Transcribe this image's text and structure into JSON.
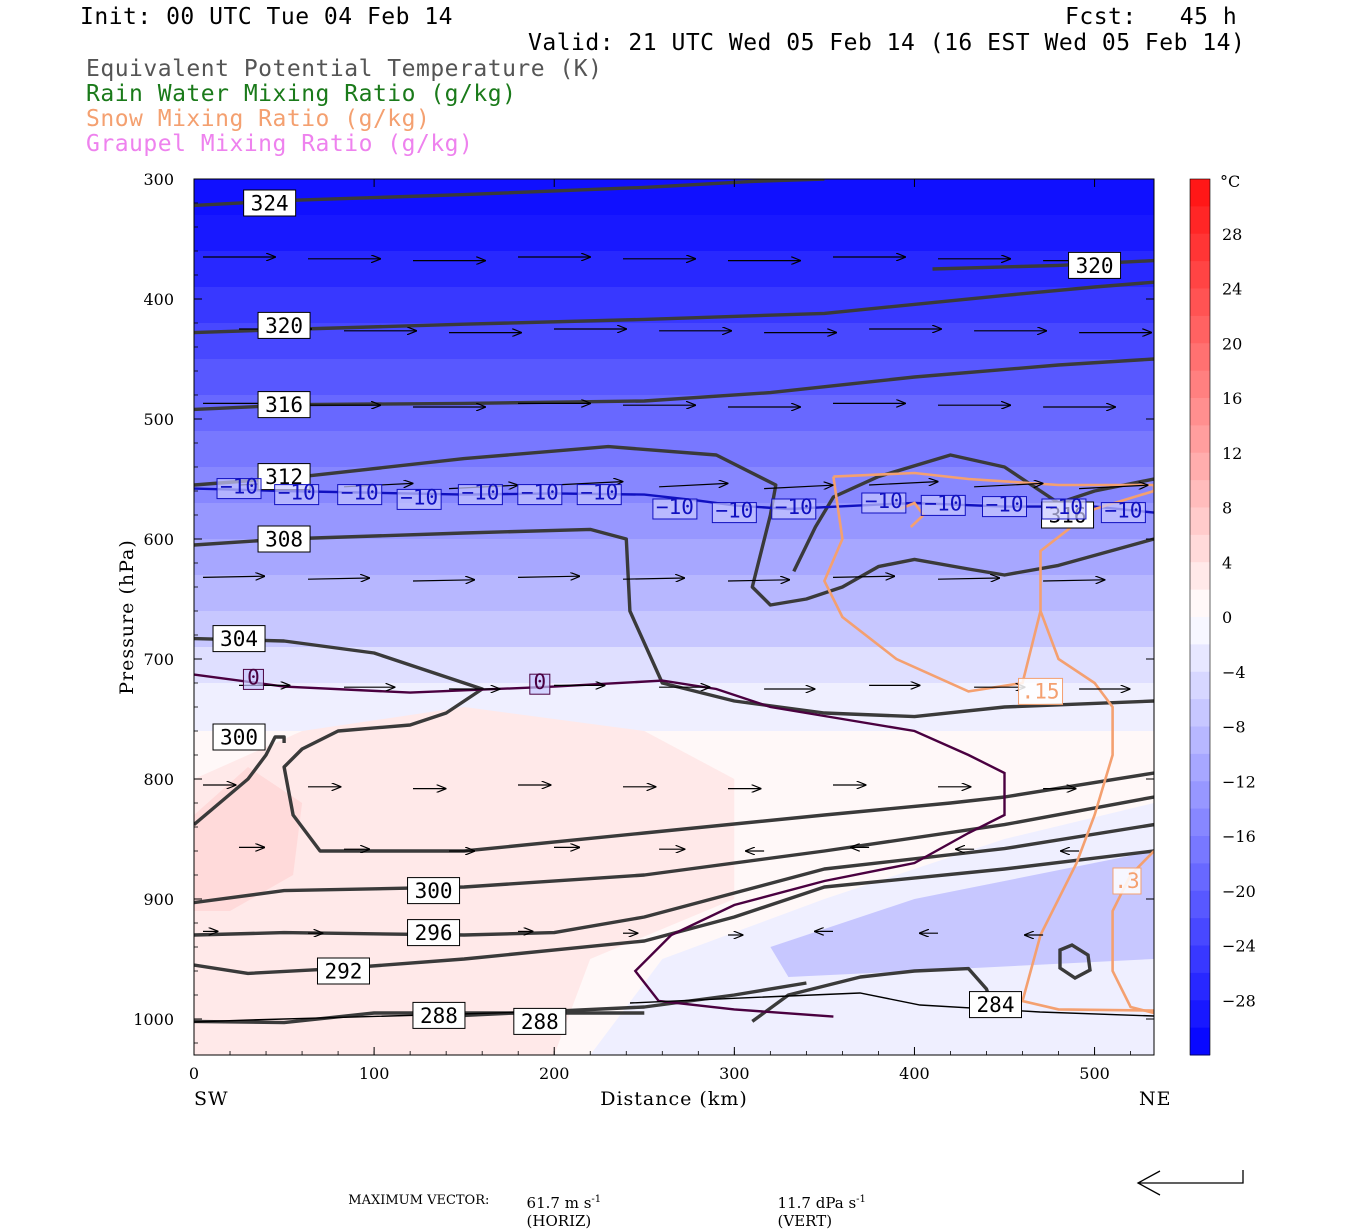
{
  "header": {
    "init": "Init: 00 UTC Tue 04 Feb 14",
    "fcst": "Fcst:   45 h",
    "valid": "Valid: 21 UTC Wed 05 Feb 14 (16 EST Wed 05 Feb 14)",
    "legend": [
      {
        "text": "Equivalent Potential Temperature (K)",
        "color": "#555555"
      },
      {
        "text": "Rain Water Mixing Ratio (g/kg)",
        "color": "#1a7a1a"
      },
      {
        "text": "Snow Mixing Ratio (g/kg)",
        "color": "#f4a070"
      },
      {
        "text": "Graupel Mixing Ratio (g/kg)",
        "color": "#ee82ee"
      }
    ]
  },
  "footer": {
    "max_vector_label": "MAXIMUM VECTOR:",
    "horiz_value": "61.7 m s",
    "horiz_unit": "(HORIZ)",
    "vert_value": "11.7 dPa s",
    "vert_unit": "(VERT)",
    "exp": "-1"
  },
  "chart_data": {
    "type": "cross-section",
    "xlabel": "Distance (km)",
    "ylabel": "Pressure (hPa)",
    "x_ticks": [
      0,
      100,
      200,
      300,
      400,
      500
    ],
    "y_ticks": [
      300,
      400,
      500,
      600,
      700,
      800,
      900,
      1000
    ],
    "xlim": [
      0,
      533
    ],
    "ylim": [
      1030,
      300
    ],
    "x_end_labels": {
      "left": "SW",
      "right": "NE"
    },
    "colorbar": {
      "unit": "°C",
      "tick_labels": [
        "28",
        "24",
        "20",
        "16",
        "12",
        "8",
        "4",
        "0",
        "−4",
        "−8",
        "−12",
        "−16",
        "−20",
        "−24",
        "−28"
      ],
      "tick_values": [
        28,
        24,
        20,
        16,
        12,
        8,
        4,
        0,
        -4,
        -8,
        -12,
        -16,
        -20,
        -24,
        -28
      ],
      "range": [
        -32,
        32
      ]
    },
    "theta_e_contours": [
      {
        "value": "324",
        "points": [
          [
            0,
            322
          ],
          [
            50,
            318
          ],
          [
            150,
            313
          ],
          [
            250,
            307
          ],
          [
            310,
            302
          ],
          [
            350,
            300
          ]
        ],
        "label_at": [
          42,
          320
        ]
      },
      {
        "value": "320",
        "points": [
          [
            0,
            428
          ],
          [
            60,
            425
          ],
          [
            150,
            421
          ],
          [
            250,
            417
          ],
          [
            350,
            412
          ],
          [
            450,
            397
          ],
          [
            500,
            390
          ],
          [
            533,
            386
          ]
        ],
        "label_at": [
          50,
          422
        ]
      },
      {
        "value": "320",
        "points": [
          [
            410,
            375
          ],
          [
            480,
            372
          ],
          [
            533,
            368
          ]
        ],
        "label_at": [
          500,
          372
        ]
      },
      {
        "value": "316",
        "points": [
          [
            0,
            492
          ],
          [
            60,
            488
          ],
          [
            150,
            487
          ],
          [
            250,
            485
          ],
          [
            320,
            478
          ],
          [
            400,
            465
          ],
          [
            480,
            455
          ],
          [
            533,
            450
          ]
        ],
        "label_at": [
          50,
          488
        ]
      },
      {
        "value": "312",
        "points": [
          [
            0,
            555
          ],
          [
            60,
            548
          ],
          [
            150,
            533
          ],
          [
            230,
            523
          ],
          [
            290,
            530
          ],
          [
            323,
            555
          ],
          [
            320,
            580
          ],
          [
            310,
            640
          ],
          [
            320,
            655
          ],
          [
            340,
            650
          ],
          [
            360,
            640
          ],
          [
            380,
            623
          ],
          [
            400,
            617
          ],
          [
            430,
            625
          ],
          [
            450,
            630
          ],
          [
            480,
            622
          ],
          [
            533,
            600
          ]
        ],
        "label_at": [
          50,
          548
        ]
      },
      {
        "value": "316",
        "points": [
          [
            333,
            627
          ],
          [
            345,
            590
          ],
          [
            355,
            565
          ],
          [
            380,
            548
          ],
          [
            420,
            530
          ],
          [
            450,
            540
          ],
          [
            470,
            560
          ],
          [
            480,
            570
          ],
          [
            500,
            560
          ],
          [
            533,
            550
          ]
        ],
        "label_at": [
          485,
          580
        ]
      },
      {
        "value": "308",
        "points": [
          [
            0,
            605
          ],
          [
            50,
            600
          ],
          [
            150,
            595
          ],
          [
            220,
            592
          ],
          [
            240,
            600
          ],
          [
            242,
            660
          ],
          [
            260,
            720
          ],
          [
            300,
            735
          ],
          [
            350,
            745
          ],
          [
            400,
            748
          ],
          [
            450,
            740
          ],
          [
            533,
            735
          ]
        ],
        "label_at": [
          50,
          600
        ]
      },
      {
        "value": "304",
        "points": [
          [
            0,
            683
          ],
          [
            50,
            685
          ],
          [
            100,
            695
          ],
          [
            160,
            725
          ],
          [
            140,
            745
          ],
          [
            120,
            755
          ],
          [
            80,
            760
          ],
          [
            60,
            775
          ],
          [
            50,
            790
          ],
          [
            55,
            830
          ],
          [
            70,
            860
          ],
          [
            150,
            860
          ],
          [
            250,
            845
          ],
          [
            350,
            830
          ],
          [
            420,
            820
          ],
          [
            450,
            815
          ],
          [
            533,
            795
          ]
        ],
        "label_at": [
          25,
          683
        ]
      },
      {
        "value": "300",
        "points": [
          [
            0,
            838
          ],
          [
            30,
            800
          ],
          [
            40,
            780
          ],
          [
            45,
            765
          ],
          [
            50,
            765
          ],
          [
            50,
            770
          ]
        ],
        "label_at": [
          25,
          765
        ]
      },
      {
        "value": "300",
        "points": [
          [
            0,
            903
          ],
          [
            50,
            893
          ],
          [
            150,
            890
          ],
          [
            250,
            880
          ],
          [
            350,
            860
          ],
          [
            450,
            838
          ],
          [
            533,
            815
          ]
        ],
        "label_at": [
          133,
          893
        ]
      },
      {
        "value": "296",
        "points": [
          [
            0,
            930
          ],
          [
            50,
            928
          ],
          [
            150,
            930
          ],
          [
            200,
            928
          ],
          [
            250,
            915
          ],
          [
            300,
            895
          ],
          [
            350,
            875
          ],
          [
            450,
            858
          ],
          [
            533,
            838
          ]
        ],
        "label_at": [
          133,
          928
        ]
      },
      {
        "value": "292",
        "points": [
          [
            0,
            955
          ],
          [
            30,
            962
          ],
          [
            80,
            958
          ],
          [
            150,
            950
          ],
          [
            250,
            935
          ],
          [
            300,
            915
          ],
          [
            350,
            890
          ],
          [
            450,
            875
          ],
          [
            533,
            860
          ]
        ],
        "label_at": [
          83,
          960
        ]
      },
      {
        "value": "288",
        "points": [
          [
            0,
            1002
          ],
          [
            50,
            1003
          ],
          [
            100,
            995
          ],
          [
            150,
            995
          ],
          [
            200,
            995
          ],
          [
            250,
            995
          ]
        ],
        "label_at": [
          136,
          997
        ]
      },
      {
        "value": "288",
        "points": [
          [
            150,
            997
          ],
          [
            250,
            990
          ],
          [
            300,
            980
          ],
          [
            340,
            970
          ]
        ],
        "label_at": [
          192,
          1002
        ]
      },
      {
        "value": "284",
        "points": [
          [
            310,
            1002
          ],
          [
            330,
            980
          ],
          [
            370,
            965
          ],
          [
            400,
            960
          ],
          [
            430,
            958
          ],
          [
            440,
            975
          ],
          [
            445,
            997
          ]
        ],
        "label_at": [
          445,
          988
        ]
      }
    ],
    "temperature_contours": [
      {
        "value": "−10",
        "color": "#1010c0",
        "points": [
          [
            0,
            558
          ],
          [
            50,
            560
          ],
          [
            150,
            563
          ],
          [
            200,
            562
          ],
          [
            250,
            563
          ],
          [
            280,
            568
          ],
          [
            300,
            572
          ],
          [
            330,
            575
          ],
          [
            370,
            572
          ],
          [
            400,
            570
          ],
          [
            450,
            573
          ],
          [
            500,
            573
          ],
          [
            533,
            578
          ]
        ],
        "labels": [
          [
            25,
            558
          ],
          [
            57,
            563
          ],
          [
            92,
            563
          ],
          [
            125,
            567
          ],
          [
            159,
            563
          ],
          [
            192,
            563
          ],
          [
            225,
            563
          ],
          [
            267,
            575
          ],
          [
            300,
            578
          ],
          [
            333,
            575
          ],
          [
            383,
            570
          ],
          [
            416,
            572
          ],
          [
            450,
            573
          ],
          [
            483,
            575
          ],
          [
            516,
            578
          ]
        ]
      },
      {
        "value": "0",
        "color": "#4a0040",
        "points": [
          [
            0,
            713
          ],
          [
            50,
            723
          ],
          [
            120,
            728
          ],
          [
            200,
            723
          ],
          [
            260,
            718
          ],
          [
            290,
            725
          ],
          [
            320,
            740
          ],
          [
            360,
            750
          ],
          [
            400,
            760
          ],
          [
            430,
            780
          ],
          [
            450,
            795
          ],
          [
            450,
            830
          ],
          [
            430,
            845
          ],
          [
            400,
            870
          ],
          [
            350,
            885
          ],
          [
            300,
            905
          ],
          [
            265,
            930
          ],
          [
            245,
            960
          ],
          [
            258,
            985
          ],
          [
            300,
            992
          ],
          [
            355,
            998
          ]
        ],
        "labels": [
          [
            33,
            717
          ],
          [
            192,
            721
          ]
        ]
      }
    ],
    "snow_contours": [
      {
        "value": ".15",
        "color": "#f4a070",
        "points": [
          [
            355,
            548
          ],
          [
            400,
            545
          ],
          [
            430,
            550
          ],
          [
            480,
            555
          ],
          [
            533,
            555
          ],
          [
            533,
            560
          ],
          [
            500,
            575
          ],
          [
            470,
            610
          ],
          [
            470,
            660
          ],
          [
            480,
            700
          ],
          [
            500,
            720
          ],
          [
            510,
            740
          ],
          [
            510,
            780
          ],
          [
            500,
            830
          ],
          [
            490,
            870
          ],
          [
            470,
            930
          ],
          [
            460,
            985
          ],
          [
            480,
            992
          ],
          [
            533,
            993
          ]
        ],
        "labels": [
          [
            470,
            727
          ]
        ]
      },
      {
        "value": ".3",
        "color": "#f4a070",
        "points": [
          [
            533,
            860
          ],
          [
            520,
            880
          ],
          [
            510,
            910
          ],
          [
            510,
            960
          ],
          [
            520,
            990
          ],
          [
            533,
            995
          ]
        ],
        "labels": [
          [
            518,
            885
          ]
        ]
      },
      {
        "value": "",
        "color": "#f4a070",
        "points": [
          [
            355,
            548
          ],
          [
            360,
            600
          ],
          [
            350,
            635
          ],
          [
            360,
            665
          ],
          [
            390,
            700
          ],
          [
            430,
            727
          ],
          [
            460,
            720
          ],
          [
            470,
            660
          ]
        ],
        "labels": []
      }
    ],
    "wind_vectors": {
      "rows": [
        {
          "p": 365,
          "u": 1.0,
          "w": 0.0
        },
        {
          "p": 425,
          "u": 1.0,
          "w": 0.0
        },
        {
          "p": 487,
          "u": 1.0,
          "w": 0.0
        },
        {
          "p": 555,
          "u": 0.95,
          "w": 0.05
        },
        {
          "p": 632,
          "u": 0.85,
          "w": 0.02
        },
        {
          "p": 722,
          "u": 0.7,
          "w": 0.0
        },
        {
          "p": 805,
          "u": 0.45,
          "w": 0.0
        },
        {
          "p": 857,
          "u": 0.35,
          "w": 0.0
        },
        {
          "p": 927,
          "u": 0.2,
          "w": 0.0
        }
      ]
    }
  }
}
